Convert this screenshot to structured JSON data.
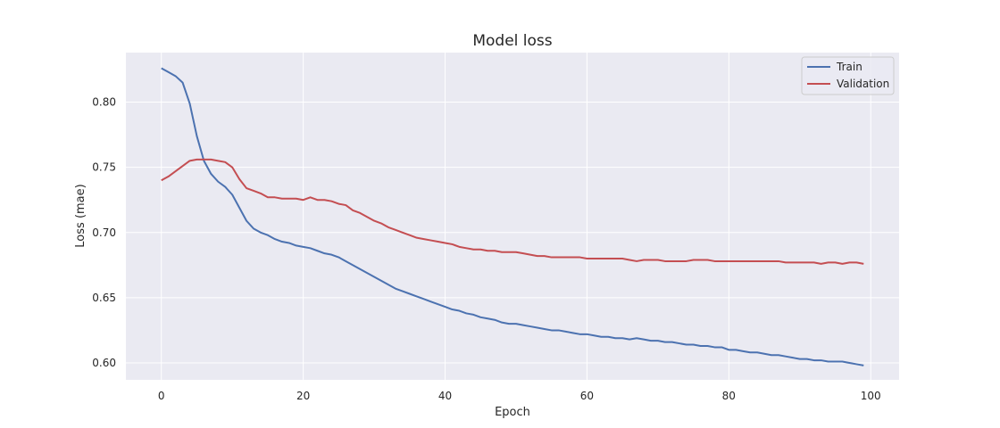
{
  "chart_data": {
    "type": "line",
    "title": "Model loss",
    "xlabel": "Epoch",
    "ylabel": "Loss (mae)",
    "xlim": [
      -5,
      104
    ],
    "ylim": [
      0.587,
      0.838
    ],
    "xticks": [
      0,
      20,
      40,
      60,
      80,
      100
    ],
    "yticks": [
      0.6,
      0.65,
      0.7,
      0.75,
      0.8
    ],
    "xtick_labels": [
      "0",
      "20",
      "40",
      "60",
      "80",
      "100"
    ],
    "ytick_labels": [
      "0.60",
      "0.65",
      "0.70",
      "0.75",
      "0.80"
    ],
    "grid": true,
    "legend_position": "top-right",
    "background": "#eaeaf2",
    "series": [
      {
        "name": "Train",
        "color": "#4c72b0",
        "x": [
          0,
          1,
          2,
          3,
          4,
          5,
          6,
          7,
          8,
          9,
          10,
          11,
          12,
          13,
          14,
          15,
          16,
          17,
          18,
          19,
          20,
          21,
          22,
          23,
          24,
          25,
          26,
          27,
          28,
          29,
          30,
          31,
          32,
          33,
          34,
          35,
          36,
          37,
          38,
          39,
          40,
          41,
          42,
          43,
          44,
          45,
          46,
          47,
          48,
          49,
          50,
          51,
          52,
          53,
          54,
          55,
          56,
          57,
          58,
          59,
          60,
          61,
          62,
          63,
          64,
          65,
          66,
          67,
          68,
          69,
          70,
          71,
          72,
          73,
          74,
          75,
          76,
          77,
          78,
          79,
          80,
          81,
          82,
          83,
          84,
          85,
          86,
          87,
          88,
          89,
          90,
          91,
          92,
          93,
          94,
          95,
          96,
          97,
          98,
          99
        ],
        "values": [
          0.826,
          0.823,
          0.82,
          0.815,
          0.799,
          0.774,
          0.755,
          0.745,
          0.739,
          0.735,
          0.729,
          0.719,
          0.709,
          0.703,
          0.7,
          0.698,
          0.695,
          0.693,
          0.692,
          0.69,
          0.689,
          0.688,
          0.686,
          0.684,
          0.683,
          0.681,
          0.678,
          0.675,
          0.672,
          0.669,
          0.666,
          0.663,
          0.66,
          0.657,
          0.655,
          0.653,
          0.651,
          0.649,
          0.647,
          0.645,
          0.643,
          0.641,
          0.64,
          0.638,
          0.637,
          0.635,
          0.634,
          0.633,
          0.631,
          0.63,
          0.63,
          0.629,
          0.628,
          0.627,
          0.626,
          0.625,
          0.625,
          0.624,
          0.623,
          0.622,
          0.622,
          0.621,
          0.62,
          0.62,
          0.619,
          0.619,
          0.618,
          0.619,
          0.618,
          0.617,
          0.617,
          0.616,
          0.616,
          0.615,
          0.614,
          0.614,
          0.613,
          0.613,
          0.612,
          0.612,
          0.61,
          0.61,
          0.609,
          0.608,
          0.608,
          0.607,
          0.606,
          0.606,
          0.605,
          0.604,
          0.603,
          0.603,
          0.602,
          0.602,
          0.601,
          0.601,
          0.601,
          0.6,
          0.599,
          0.598
        ]
      },
      {
        "name": "Validation",
        "color": "#c44e52",
        "x": [
          0,
          1,
          2,
          3,
          4,
          5,
          6,
          7,
          8,
          9,
          10,
          11,
          12,
          13,
          14,
          15,
          16,
          17,
          18,
          19,
          20,
          21,
          22,
          23,
          24,
          25,
          26,
          27,
          28,
          29,
          30,
          31,
          32,
          33,
          34,
          35,
          36,
          37,
          38,
          39,
          40,
          41,
          42,
          43,
          44,
          45,
          46,
          47,
          48,
          49,
          50,
          51,
          52,
          53,
          54,
          55,
          56,
          57,
          58,
          59,
          60,
          61,
          62,
          63,
          64,
          65,
          66,
          67,
          68,
          69,
          70,
          71,
          72,
          73,
          74,
          75,
          76,
          77,
          78,
          79,
          80,
          81,
          82,
          83,
          84,
          85,
          86,
          87,
          88,
          89,
          90,
          91,
          92,
          93,
          94,
          95,
          96,
          97,
          98,
          99
        ],
        "values": [
          0.74,
          0.743,
          0.747,
          0.751,
          0.755,
          0.756,
          0.756,
          0.756,
          0.755,
          0.754,
          0.75,
          0.741,
          0.734,
          0.732,
          0.73,
          0.727,
          0.727,
          0.726,
          0.726,
          0.726,
          0.725,
          0.727,
          0.725,
          0.725,
          0.724,
          0.722,
          0.721,
          0.717,
          0.715,
          0.712,
          0.709,
          0.707,
          0.704,
          0.702,
          0.7,
          0.698,
          0.696,
          0.695,
          0.694,
          0.693,
          0.692,
          0.691,
          0.689,
          0.688,
          0.687,
          0.687,
          0.686,
          0.686,
          0.685,
          0.685,
          0.685,
          0.684,
          0.683,
          0.682,
          0.682,
          0.681,
          0.681,
          0.681,
          0.681,
          0.681,
          0.68,
          0.68,
          0.68,
          0.68,
          0.68,
          0.68,
          0.679,
          0.678,
          0.679,
          0.679,
          0.679,
          0.678,
          0.678,
          0.678,
          0.678,
          0.679,
          0.679,
          0.679,
          0.678,
          0.678,
          0.678,
          0.678,
          0.678,
          0.678,
          0.678,
          0.678,
          0.678,
          0.678,
          0.677,
          0.677,
          0.677,
          0.677,
          0.677,
          0.676,
          0.677,
          0.677,
          0.676,
          0.677,
          0.677,
          0.676
        ]
      }
    ]
  }
}
